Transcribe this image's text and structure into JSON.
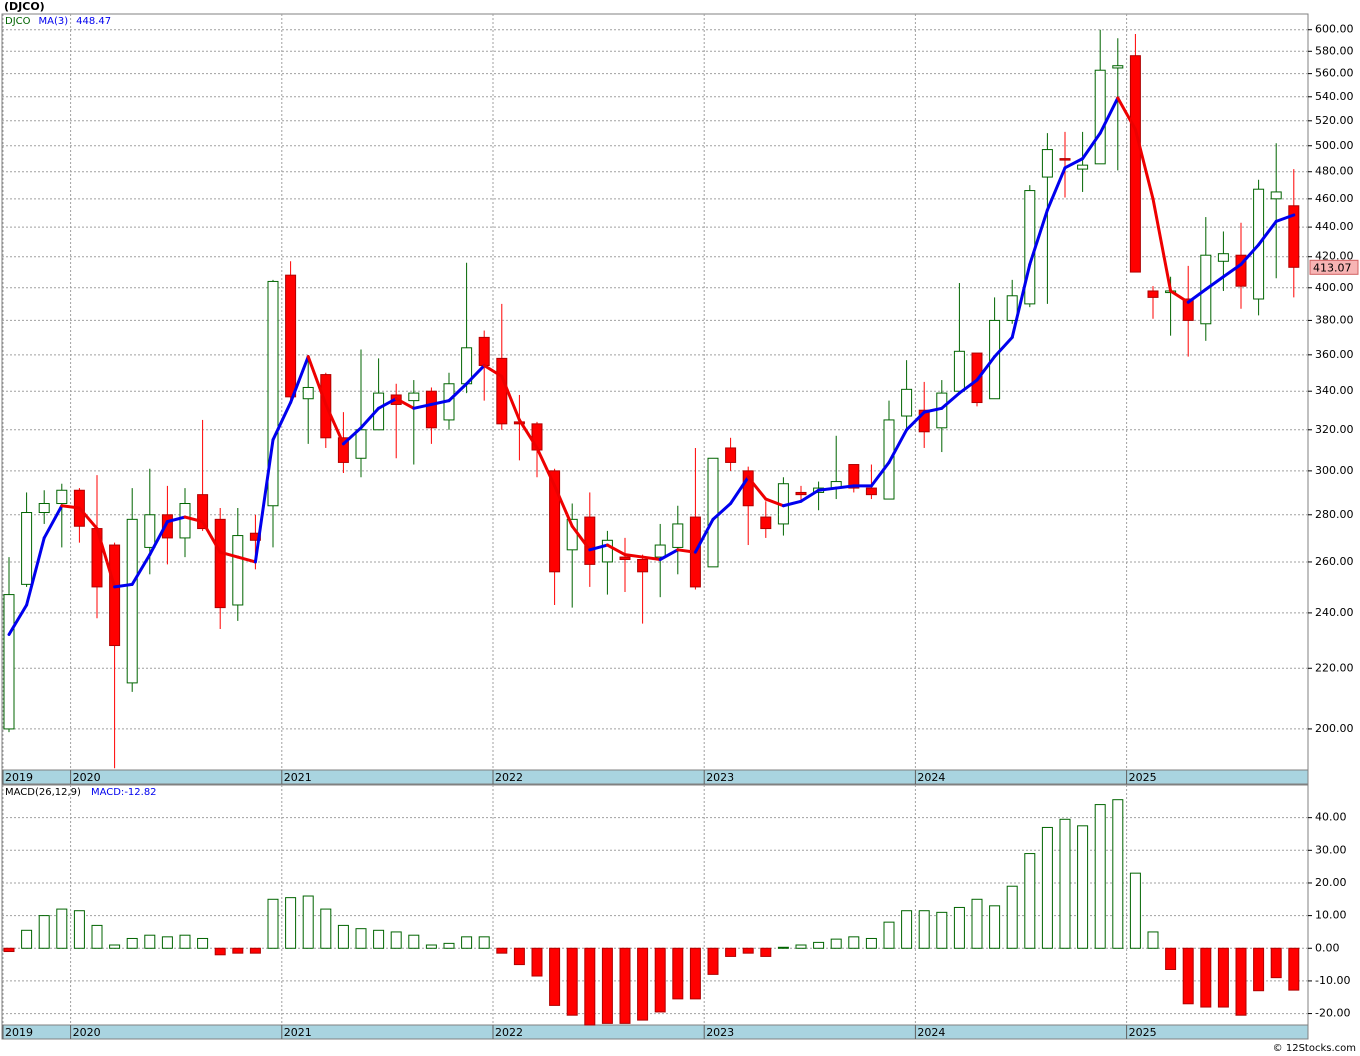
{
  "chart_data": [
    {
      "type": "candlestick",
      "title": "(DJCO)",
      "symbol": "DJCO",
      "log_scale": true,
      "grid": true,
      "up_color": "#006400",
      "down_color": "#ff0000",
      "open": [
        200,
        251,
        281,
        285,
        291,
        274,
        267,
        215,
        266,
        280,
        270,
        289,
        278,
        243,
        272,
        284,
        408,
        336,
        349,
        316,
        306,
        320,
        338,
        335,
        340,
        325,
        344,
        370,
        358,
        324,
        323,
        300,
        265,
        279,
        260,
        262,
        261,
        262,
        266,
        279,
        258,
        311,
        300,
        279,
        276,
        290,
        290,
        292,
        303,
        292,
        287,
        327,
        330,
        321,
        340,
        361,
        336,
        380,
        390,
        476,
        490,
        482,
        486,
        565,
        576,
        398,
        397,
        393,
        378,
        417,
        421,
        393,
        460,
        455
      ],
      "high": [
        262,
        290,
        291,
        294,
        292,
        298,
        268,
        292,
        301,
        293,
        292,
        325,
        283,
        283,
        280,
        405,
        417,
        358,
        350,
        329,
        363,
        358,
        344,
        346,
        342,
        350,
        416,
        374,
        390,
        338,
        324,
        301,
        285,
        290,
        273,
        270,
        263,
        276,
        284,
        311,
        306,
        316,
        302,
        286,
        297,
        293,
        295,
        317,
        303,
        303,
        335,
        357,
        345,
        346,
        403,
        361,
        394,
        405,
        470,
        510,
        511,
        511,
        600,
        592,
        596,
        401,
        407,
        414,
        447,
        437,
        443,
        474,
        502,
        482
      ],
      "low": [
        199,
        250,
        276,
        266,
        268,
        238,
        188,
        212,
        255,
        259,
        262,
        273,
        234,
        237,
        257,
        266,
        334,
        313,
        311,
        299,
        297,
        320,
        306,
        303,
        313,
        320,
        339,
        335,
        320,
        305,
        297,
        243,
        242,
        250,
        247,
        248,
        236,
        246,
        255,
        249,
        258,
        300,
        267,
        270,
        271,
        286,
        282,
        287,
        290,
        287,
        287,
        320,
        311,
        309,
        339,
        332,
        336,
        378,
        388,
        390,
        461,
        465,
        486,
        481,
        410,
        381,
        371,
        359,
        368,
        398,
        387,
        383,
        406,
        394
      ],
      "close": [
        247,
        281,
        285,
        291,
        275,
        250,
        228,
        278,
        280,
        270,
        285,
        274,
        242,
        271,
        269,
        404,
        337,
        342,
        316,
        304,
        320,
        339,
        333,
        339,
        321,
        344,
        364,
        354,
        323,
        323,
        310,
        256,
        278,
        259,
        269,
        261,
        256,
        267,
        276,
        250,
        306,
        304,
        284,
        274,
        294,
        289,
        292,
        295,
        292,
        289,
        325,
        341,
        319,
        339,
        362,
        334,
        380,
        395,
        466,
        497,
        489,
        485,
        563,
        567,
        410,
        394,
        398,
        380,
        421,
        422,
        401,
        467,
        465,
        413.07
      ],
      "series": [
        {
          "name": "MA(3)",
          "color": "#0000ee",
          "down_color": "#ee0000",
          "values": [
            232,
            243,
            270,
            284,
            283,
            274,
            250,
            251,
            263,
            277,
            279,
            277,
            264,
            262,
            260,
            315,
            334,
            359,
            333,
            313,
            321,
            331,
            336,
            331,
            333,
            335,
            344,
            354,
            348,
            325,
            311,
            293,
            275,
            265,
            267,
            263,
            262,
            261,
            265,
            264,
            278,
            285,
            297,
            287,
            284,
            286,
            291,
            292,
            293,
            293,
            304,
            320,
            329,
            331,
            339,
            346,
            359,
            370,
            415,
            452,
            483,
            490,
            510,
            539,
            513,
            460,
            398,
            391,
            399,
            407,
            415,
            428,
            444,
            448.47
          ]
        }
      ],
      "ylim": [
        187.5,
        615
      ],
      "yticks": [
        {
          "value": 200,
          "label": "200.00"
        },
        {
          "value": 220,
          "label": "220.00"
        },
        {
          "value": 240,
          "label": "240.00"
        },
        {
          "value": 260,
          "label": "260.00"
        },
        {
          "value": 280,
          "label": "280.00"
        },
        {
          "value": 300,
          "label": "300.00"
        },
        {
          "value": 320,
          "label": "320.00"
        },
        {
          "value": 340,
          "label": "340.00"
        },
        {
          "value": 360,
          "label": "360.00"
        },
        {
          "value": 380,
          "label": "380.00"
        },
        {
          "value": 400,
          "label": "400.00"
        },
        {
          "value": 420,
          "label": "420.00"
        },
        {
          "value": 440,
          "label": "440.00"
        },
        {
          "value": 460,
          "label": "460.00"
        },
        {
          "value": 480,
          "label": "480.00"
        },
        {
          "value": 500,
          "label": "500.00"
        },
        {
          "value": 520,
          "label": "520.00"
        },
        {
          "value": 540,
          "label": "540.00"
        },
        {
          "value": 560,
          "label": "560.00"
        },
        {
          "value": 580,
          "label": "580.00"
        },
        {
          "value": 600,
          "label": "600.00"
        }
      ],
      "xticks": [
        {
          "value": -0.5,
          "label": "2019"
        },
        {
          "value": 3.5,
          "label": "2020"
        },
        {
          "value": 15.5,
          "label": "2021"
        },
        {
          "value": 27.5,
          "label": "2022"
        },
        {
          "value": 39.5,
          "label": "2023"
        },
        {
          "value": 51.5,
          "label": "2024"
        },
        {
          "value": 63.5,
          "label": "2025"
        }
      ]
    },
    {
      "type": "bar",
      "indicator": "MACD(26,12,9)",
      "grid": true,
      "series": [
        {
          "name": "MACD:",
          "color": "#006400",
          "down_color": "#ff0000",
          "values": [
            -1,
            5.5,
            10,
            12,
            11.5,
            7,
            1,
            3,
            4,
            3.5,
            4,
            3,
            -2,
            -1.5,
            -1.5,
            15,
            15.5,
            16,
            12,
            7,
            6,
            5.5,
            5,
            4,
            1,
            1.5,
            3.5,
            3.5,
            -1.5,
            -5,
            -8.5,
            -17.5,
            -20.5,
            -23.5,
            -23,
            -23,
            -22,
            -19.5,
            -15.5,
            -15.5,
            -8,
            -2.5,
            -1.5,
            -2.5,
            0.3,
            1,
            1.8,
            2.8,
            3.5,
            3,
            8,
            11.5,
            11.5,
            11,
            12.5,
            15,
            13,
            19,
            29,
            37,
            39.5,
            37.5,
            44,
            45.5,
            23,
            5,
            -6.5,
            -17,
            -18,
            -18,
            -20.5,
            -13,
            -9,
            -12.82
          ]
        }
      ],
      "ylim": [
        -23.5,
        50
      ],
      "yticks": [
        {
          "value": 40,
          "label": "40.00"
        },
        {
          "value": 30,
          "label": "30.00"
        },
        {
          "value": 20,
          "label": "20.00"
        },
        {
          "value": 10,
          "label": "10.00"
        },
        {
          "value": 0,
          "label": "0.00"
        },
        {
          "value": -10,
          "label": "-10.00"
        },
        {
          "value": -20,
          "label": "-20.00"
        }
      ],
      "xticks": [
        {
          "value": -0.5,
          "label": "2019"
        },
        {
          "value": 3.5,
          "label": "2020"
        },
        {
          "value": 15.5,
          "label": "2021"
        },
        {
          "value": 27.5,
          "label": "2022"
        },
        {
          "value": 39.5,
          "label": "2023"
        },
        {
          "value": 51.5,
          "label": "2024"
        },
        {
          "value": 63.5,
          "label": "2025"
        }
      ]
    }
  ],
  "source": "© 12Stocks.com"
}
